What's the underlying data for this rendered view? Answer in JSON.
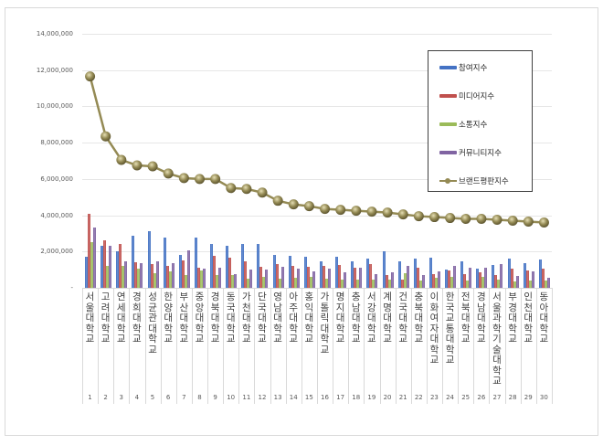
{
  "chart_data": {
    "type": "bar",
    "title": "",
    "xlabel": "",
    "ylabel": "",
    "ylim": [
      0,
      14000000
    ],
    "yticks": [
      "-",
      "2,000,000",
      "4,000,000",
      "6,000,000",
      "8,000,000",
      "10,000,000",
      "12,000,000",
      "14,000,000"
    ],
    "grid": true,
    "legend_position": "right-top-inside",
    "categories": [
      "서울대학교",
      "고려대학교",
      "연세대학교",
      "경희대학교",
      "성균관대학교",
      "한양대학교",
      "부산대학교",
      "중앙대학교",
      "경북대학교",
      "동국대학교",
      "가천대학교",
      "단국대학교",
      "영남대학교",
      "아주대학교",
      "홍익대학교",
      "가톨릭대학교",
      "명지대학교",
      "충남대학교",
      "서강대학교",
      "계명대학교",
      "건국대학교",
      "충북대학교",
      "이화여자대학교",
      "한국교통대학교",
      "전북대학교",
      "경남대학교",
      "서울과학기술대학교",
      "부경대학교",
      "인천대학교",
      "동아대학교"
    ],
    "ranks": [
      "1",
      "2",
      "3",
      "4",
      "5",
      "6",
      "7",
      "8",
      "9",
      "10",
      "11",
      "12",
      "13",
      "14",
      "15",
      "16",
      "17",
      "18",
      "19",
      "20",
      "21",
      "22",
      "23",
      "24",
      "25",
      "26",
      "27",
      "28",
      "29",
      "30"
    ],
    "series": [
      {
        "name": "참여지수",
        "type": "bar",
        "color": "#4472c4",
        "values": [
          1700000,
          2300000,
          2000000,
          2850000,
          3100000,
          2750000,
          1800000,
          2750000,
          2400000,
          2300000,
          2400000,
          2400000,
          1800000,
          1750000,
          1700000,
          1450000,
          1700000,
          1450000,
          1600000,
          2000000,
          1450000,
          1600000,
          1650000,
          1000000,
          1450000,
          1050000,
          1250000,
          1600000,
          1350000,
          1550000
        ]
      },
      {
        "name": "미디어지수",
        "type": "bar",
        "color": "#c0504d",
        "values": [
          4100000,
          2600000,
          2400000,
          1400000,
          1300000,
          1200000,
          1500000,
          1100000,
          1750000,
          1650000,
          1450000,
          1150000,
          1300000,
          1200000,
          1150000,
          1200000,
          1250000,
          1100000,
          1300000,
          700000,
          450000,
          1100000,
          750000,
          950000,
          750000,
          850000,
          700000,
          1050000,
          950000,
          1050000
        ]
      },
      {
        "name": "소통지수",
        "type": "bar",
        "color": "#9bbb59",
        "values": [
          2500000,
          1200000,
          1200000,
          1050000,
          800000,
          900000,
          700000,
          950000,
          700000,
          700000,
          500000,
          600000,
          500000,
          550000,
          600000,
          500000,
          450000,
          450000,
          450000,
          450000,
          800000,
          400000,
          550000,
          600000,
          400000,
          600000,
          450000,
          350000,
          400000,
          400000
        ]
      },
      {
        "name": "커뮤니티지수",
        "type": "bar",
        "color": "#8064a2",
        "values": [
          3300000,
          2300000,
          1450000,
          1350000,
          1450000,
          1350000,
          2050000,
          1050000,
          1100000,
          750000,
          1000000,
          1000000,
          1150000,
          1050000,
          900000,
          1050000,
          850000,
          1100000,
          750000,
          850000,
          1200000,
          700000,
          900000,
          1200000,
          1100000,
          1100000,
          1300000,
          650000,
          900000,
          550000
        ]
      },
      {
        "name": "브랜드평판지수",
        "type": "line",
        "color": "#948a54",
        "values": [
          11650000,
          8350000,
          7050000,
          6750000,
          6700000,
          6300000,
          6050000,
          6000000,
          6000000,
          5500000,
          5450000,
          5250000,
          4800000,
          4600000,
          4500000,
          4350000,
          4300000,
          4250000,
          4200000,
          4150000,
          4050000,
          3950000,
          3900000,
          3850000,
          3800000,
          3800000,
          3750000,
          3700000,
          3650000,
          3600000
        ]
      }
    ]
  },
  "legend": {
    "items": [
      {
        "label": "참여지수",
        "color": "#4472c4",
        "kind": "bar"
      },
      {
        "label": "미디어지수",
        "color": "#c0504d",
        "kind": "bar"
      },
      {
        "label": "소통지수",
        "color": "#9bbb59",
        "kind": "bar"
      },
      {
        "label": "커뮤니티지수",
        "color": "#8064a2",
        "kind": "bar"
      },
      {
        "label": "브랜드평판지수",
        "color": "#948a54",
        "kind": "line"
      }
    ]
  }
}
